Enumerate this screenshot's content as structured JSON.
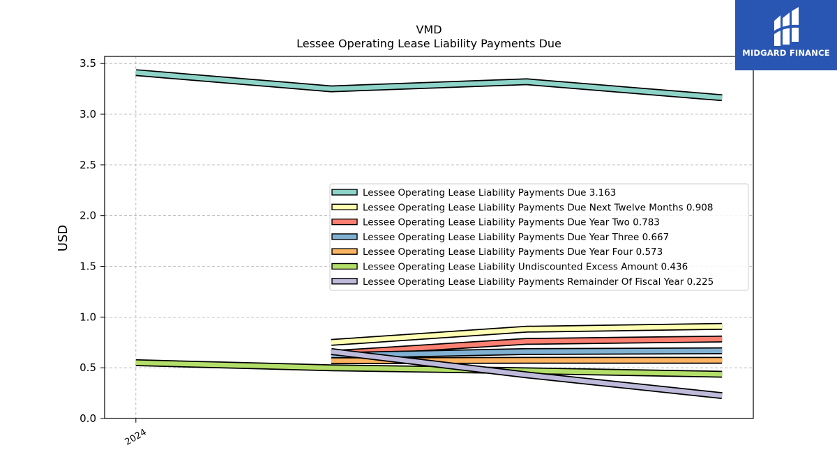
{
  "brand": {
    "name": "MIDGARD FINANCE",
    "logo_color": "#2a56b3"
  },
  "chart_data": {
    "type": "line",
    "title": "VMD",
    "subtitle": "Lessee Operating Lease Liability Payments Due",
    "ylabel": "USD",
    "xlabel": "",
    "ylim": [
      0,
      3.57
    ],
    "xlim": [
      -0.16,
      3.16
    ],
    "yticks": [
      "0.0",
      "0.5",
      "1.0",
      "1.5",
      "2.0",
      "2.5",
      "3.0",
      "3.5"
    ],
    "xtick_labels": [
      {
        "x": 0,
        "label": "2024"
      }
    ],
    "grid": true,
    "legend_position": "center-right",
    "series": [
      {
        "name": "Lessee Operating Lease Liability Payments Due",
        "legend_value": "3.163",
        "color": "#8dd3c7",
        "points": [
          [
            0,
            3.41
          ],
          [
            1,
            3.25
          ],
          [
            2,
            3.32
          ],
          [
            3,
            3.163
          ]
        ]
      },
      {
        "name": "Lessee Operating Lease Liability Payments Due Next Twelve Months",
        "legend_value": "0.908",
        "color": "#ffffb3",
        "points": [
          [
            1,
            0.75
          ],
          [
            2,
            0.88
          ],
          [
            3,
            0.908
          ]
        ]
      },
      {
        "name": "Lessee Operating Lease Liability Payments Due Year Two",
        "legend_value": "0.783",
        "color": "#fb8072",
        "points": [
          [
            1,
            0.64
          ],
          [
            2,
            0.76
          ],
          [
            3,
            0.783
          ]
        ]
      },
      {
        "name": "Lessee Operating Lease Liability Payments Due Year Three",
        "legend_value": "0.667",
        "color": "#80b1d3",
        "points": [
          [
            1,
            0.62
          ],
          [
            2,
            0.66
          ],
          [
            3,
            0.667
          ]
        ]
      },
      {
        "name": "Lessee Operating Lease Liability Payments Due Year Four",
        "legend_value": "0.573",
        "color": "#fdb462",
        "points": [
          [
            1,
            0.57
          ],
          [
            2,
            0.573
          ],
          [
            3,
            0.573
          ]
        ]
      },
      {
        "name": "Lessee Operating Lease Liability Undiscounted Excess Amount",
        "legend_value": "0.436",
        "color": "#b3de69",
        "points": [
          [
            0,
            0.55
          ],
          [
            1,
            0.5
          ],
          [
            2,
            0.47
          ],
          [
            3,
            0.436
          ]
        ]
      },
      {
        "name": "Lessee Operating Lease Liability Payments Remainder Of Fiscal Year",
        "legend_value": "0.225",
        "color": "#bebada",
        "points": [
          [
            1,
            0.66
          ],
          [
            2,
            0.43
          ],
          [
            3,
            0.225
          ]
        ]
      }
    ]
  }
}
